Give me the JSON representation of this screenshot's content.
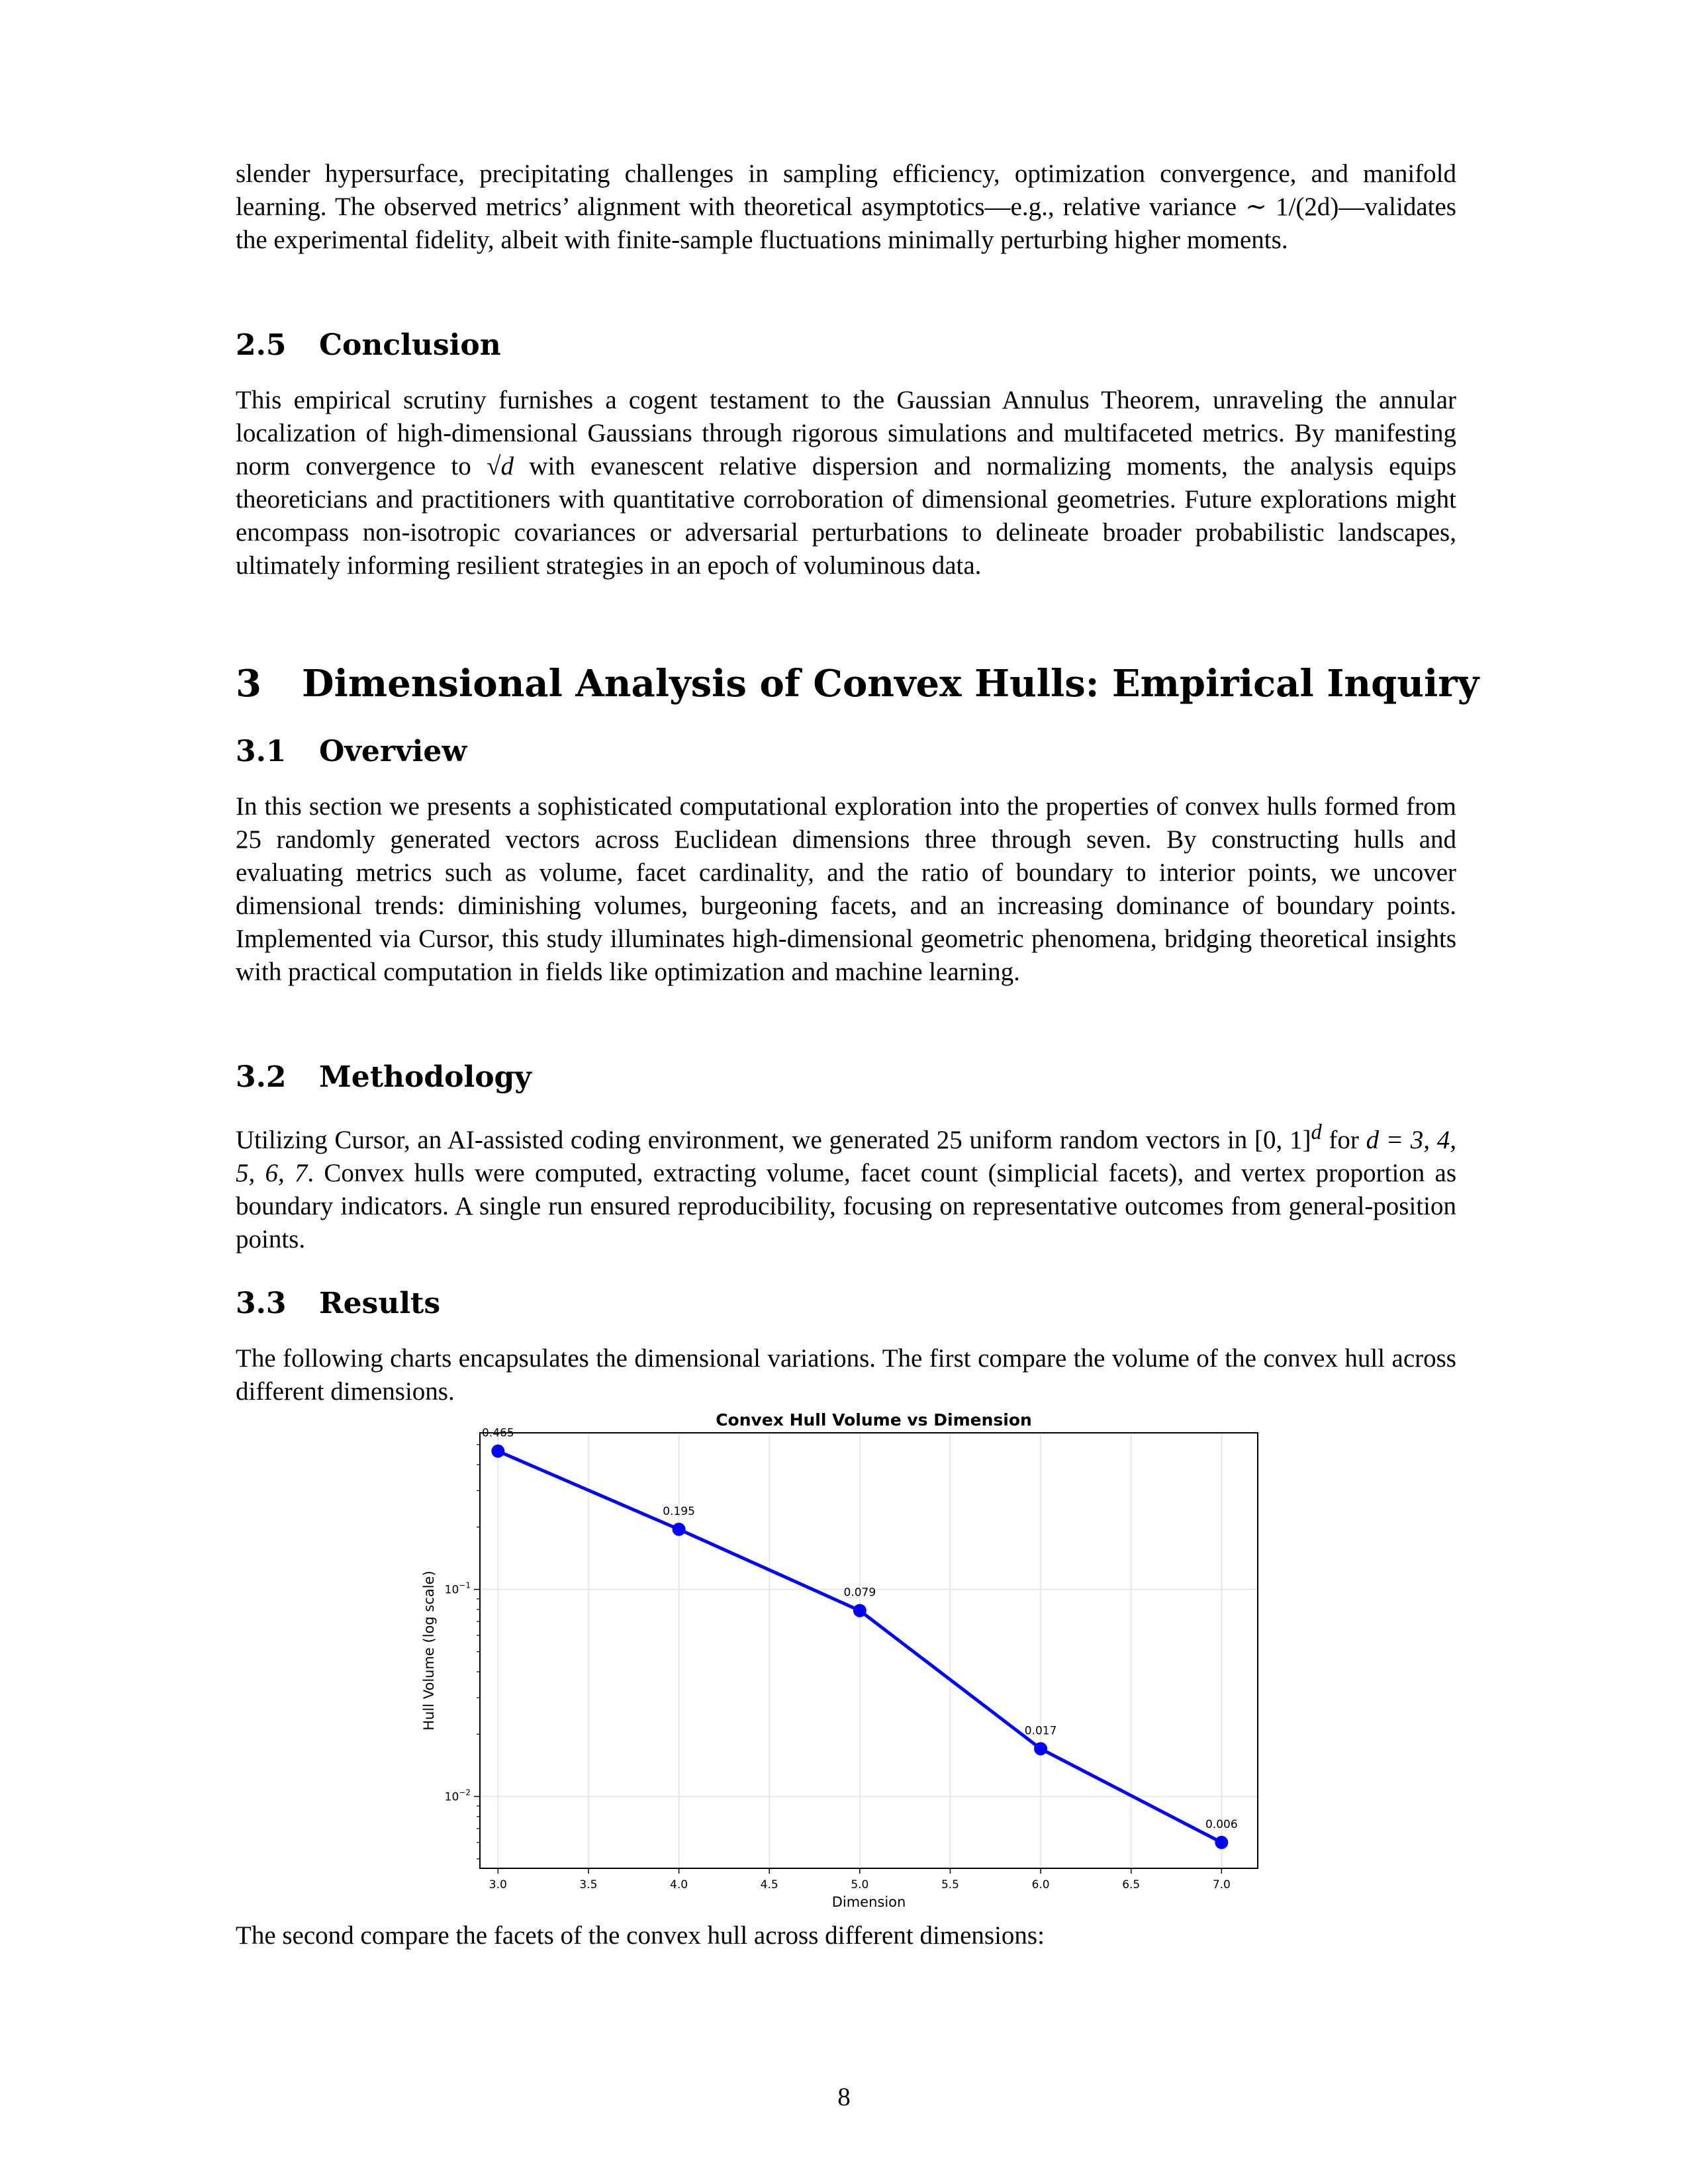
{
  "paragraphs": {
    "intro_cont": "slender hypersurface, precipitating challenges in sampling efficiency, optimization convergence, and manifold learning. The observed metrics’ alignment with theoretical asymptotics—e.g., relative variance ∼ 1/(2d)—validates the experimental fidelity, albeit with finite-sample fluctuations minimally perturbing higher moments.",
    "conclusion_a": "This empirical scrutiny furnishes a cogent testament to the Gaussian Annulus Theorem, unraveling the annular localization of high-dimensional Gaussians through rigorous simulations and multifaceted metrics. By manifesting norm convergence to ",
    "conclusion_math": "√d",
    "conclusion_b": " with evanescent relative dispersion and normalizing moments, the analysis equips theoreticians and practitioners with quantitative corroboration of dimensional geometries. Future explorations might encompass non-isotropic covariances or adversarial perturbations to delineate broader probabilistic landscapes, ultimately informing resilient strategies in an epoch of voluminous data.",
    "overview": "In this section we presents a sophisticated computational exploration into the properties of convex hulls formed from 25 randomly generated vectors across Euclidean dimensions three through seven. By constructing hulls and evaluating metrics such as volume, facet cardinality, and the ratio of boundary to interior points, we uncover dimensional trends: diminishing volumes, burgeoning facets, and an increasing dominance of boundary points. Implemented via Cursor, this study illuminates high-dimensional geometric phenomena, bridging theoretical insights with practical computation in fields like optimization and machine learning.",
    "methodology_a": "Utilizing Cursor, an AI-assisted coding environment, we generated 25 uniform random vectors in ",
    "methodology_math1": "[0, 1]",
    "methodology_sup": "d",
    "methodology_mid": " for ",
    "methodology_math2": "d = 3, 4, 5, 6, 7",
    "methodology_b": ". Convex hulls were computed, extracting volume, facet count (simplicial facets), and vertex proportion as boundary indicators. A single run ensured reproducibility, focusing on representative outcomes from general-position points.",
    "results": "The following charts encapsulates the dimensional variations. The first compare the volume of the convex hull across different dimensions.",
    "after_chart": "The second compare the facets of the convex hull across different dimensions:"
  },
  "headings": {
    "s2_5": {
      "num": "2.5",
      "title": "Conclusion"
    },
    "s3": {
      "num": "3",
      "title": "Dimensional Analysis of Convex Hulls: Empirical Inquiry"
    },
    "s3_1": {
      "num": "3.1",
      "title": "Overview"
    },
    "s3_2": {
      "num": "3.2",
      "title": "Methodology"
    },
    "s3_3": {
      "num": "3.3",
      "title": "Results"
    }
  },
  "page_number": "8",
  "chart_data": {
    "type": "line",
    "title": "Convex Hull Volume vs Dimension",
    "xlabel": "Dimension",
    "ylabel": "Hull Volume (log scale)",
    "x": [
      3.0,
      4.0,
      5.0,
      6.0,
      7.0
    ],
    "y": [
      0.465,
      0.195,
      0.079,
      0.017,
      0.006
    ],
    "point_labels": [
      "0.465",
      "0.195",
      "0.079",
      "0.017",
      "0.006"
    ],
    "xlim": [
      2.9,
      7.2
    ],
    "ylim": [
      0.0045,
      0.57
    ],
    "yscale": "log",
    "x_ticks": [
      "3.0",
      "3.5",
      "4.0",
      "4.5",
      "5.0",
      "5.5",
      "6.0",
      "6.5",
      "7.0"
    ],
    "y_ticks": [
      {
        "value": 0.1,
        "base": "10",
        "exp": "−1"
      },
      {
        "value": 0.01,
        "base": "10",
        "exp": "−2"
      }
    ],
    "grid": true,
    "color": "#0000ff"
  }
}
